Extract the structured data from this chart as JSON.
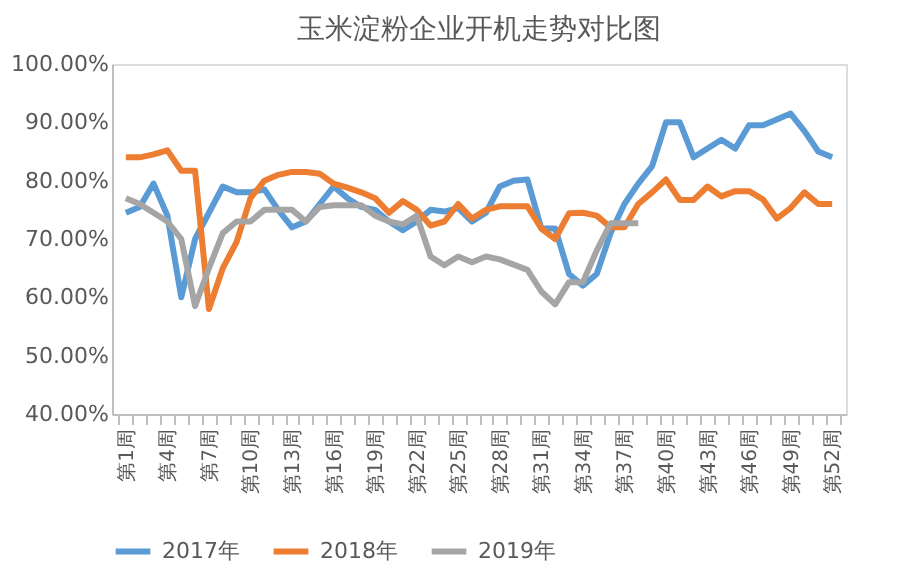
{
  "chart_data": {
    "type": "line",
    "title": "玉米淀粉企业开机走势对比图",
    "categories": [
      "第1周",
      null,
      null,
      "第4周",
      null,
      null,
      "第7周",
      null,
      null,
      "第10周",
      null,
      null,
      "第13周",
      null,
      null,
      "第16周",
      null,
      null,
      "第19周",
      null,
      null,
      "第22周",
      null,
      null,
      "第25周",
      null,
      null,
      "第28周",
      null,
      null,
      "第31周",
      null,
      null,
      "第34周",
      null,
      null,
      "第37周",
      null,
      null,
      "第40周",
      null,
      null,
      "第43周",
      null,
      null,
      "第46周",
      null,
      null,
      "第49周",
      null,
      null,
      "第52周"
    ],
    "series": [
      {
        "name": "2017年",
        "color": "#5b9bd5",
        "values": [
          74.5,
          75.5,
          79.5,
          74,
          60,
          70,
          74.5,
          79,
          78,
          78,
          78.5,
          75,
          72,
          73,
          76,
          79,
          77,
          75.5,
          75,
          73,
          71.5,
          73,
          75,
          74.7,
          75.3,
          73,
          74.5,
          79,
          80,
          80.2,
          71.8,
          71.8,
          64,
          62,
          64,
          71,
          76,
          79.5,
          82.5,
          90,
          90,
          84,
          85.5,
          87,
          85.5,
          89.5,
          89.5,
          90.5,
          91.5,
          88.5,
          85,
          84
        ]
      },
      {
        "name": "2018年",
        "color": "#ed7d31",
        "values": [
          84,
          84,
          84.5,
          85.2,
          81.7,
          81.7,
          58,
          65,
          69.5,
          77,
          80,
          81,
          81.5,
          81.5,
          81.2,
          79.5,
          78.8,
          78,
          77,
          74.5,
          76.5,
          75,
          72.3,
          73,
          76,
          73.5,
          75,
          75.6,
          75.6,
          75.6,
          71.8,
          70,
          74.4,
          74.5,
          74,
          72,
          72,
          76,
          78,
          80.2,
          76.7,
          76.7,
          79,
          77.3,
          78.2,
          78.2,
          76.8,
          73.5,
          75.3,
          78,
          76,
          76
        ]
      },
      {
        "name": "2019年",
        "color": "#a5a5a5",
        "values": [
          77,
          76,
          74.5,
          73,
          70,
          58.5,
          65,
          71,
          73,
          73,
          75,
          75,
          75,
          73,
          75.5,
          75.8,
          75.8,
          75.8,
          74,
          73,
          72.5,
          74,
          67,
          65.5,
          67,
          66,
          67,
          66.5,
          65.6,
          64.7,
          61,
          58.8,
          62.6,
          62.6,
          68,
          72.7,
          72.7,
          72.7,
          null,
          null,
          null,
          null,
          null,
          null,
          null,
          null,
          null,
          null,
          null,
          null,
          null,
          null
        ]
      }
    ],
    "ylim": [
      40,
      100
    ],
    "yticks": [
      {
        "value": 40,
        "label": "40.00%"
      },
      {
        "value": 50,
        "label": "50.00%"
      },
      {
        "value": 60,
        "label": "60.00%"
      },
      {
        "value": 70,
        "label": "70.00%"
      },
      {
        "value": 80,
        "label": "80.00%"
      },
      {
        "value": 90,
        "label": "90.00%"
      },
      {
        "value": 100,
        "label": "100.00%"
      }
    ],
    "grid": false,
    "legend": "bottom",
    "marker": "none",
    "line_style": "solid"
  }
}
